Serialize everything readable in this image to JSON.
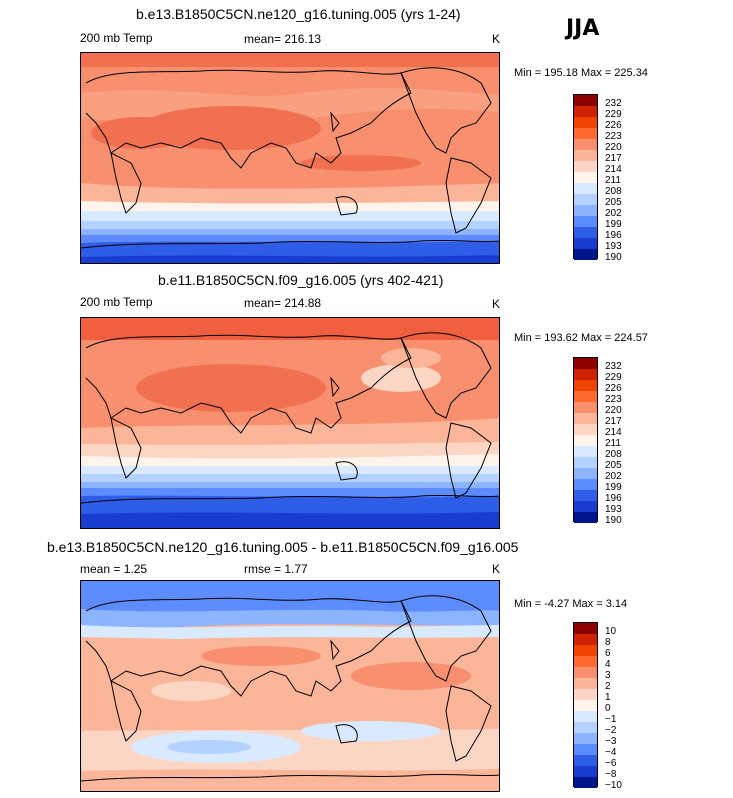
{
  "season": "JJA",
  "chart_data": [
    {
      "type": "heatmap",
      "title": "b.e13.B1850C5CN.ne120_g16.tuning.005 (yrs 1-24)",
      "variable": "200 mb Temp",
      "mean_label": "mean= 216.13",
      "units": "K",
      "min": 195.18,
      "max": 225.34,
      "minmax_label": "Min = 195.18 Max = 225.34",
      "contour_levels": [
        "232",
        "229",
        "226",
        "223",
        "220",
        "217",
        "214",
        "211",
        "208",
        "205",
        "202",
        "199",
        "196",
        "193",
        "190"
      ],
      "colors": [
        "#8b0000",
        "#cc2200",
        "#ee4400",
        "#ff6a30",
        "#f89070",
        "#fbb599",
        "#fcd6c4",
        "#fff4ec",
        "#d9eaff",
        "#b4d2ff",
        "#8cb4ff",
        "#5c8cff",
        "#2e5ee8",
        "#1a3cd0",
        "#00148c"
      ]
    },
    {
      "type": "heatmap",
      "title": "b.e11.B1850C5CN.f09_g16.005 (yrs 402-421)",
      "variable": "200 mb Temp",
      "mean_label": "mean= 214.88",
      "units": "K",
      "min": 193.62,
      "max": 224.57,
      "minmax_label": "Min = 193.62 Max = 224.57",
      "contour_levels": [
        "232",
        "229",
        "226",
        "223",
        "220",
        "217",
        "214",
        "211",
        "208",
        "205",
        "202",
        "199",
        "196",
        "193",
        "190"
      ],
      "colors": [
        "#8b0000",
        "#cc2200",
        "#ee4400",
        "#ff6a30",
        "#f89070",
        "#fbb599",
        "#fcd6c4",
        "#fff4ec",
        "#d9eaff",
        "#b4d2ff",
        "#8cb4ff",
        "#5c8cff",
        "#2e5ee8",
        "#1a3cd0",
        "#00148c"
      ]
    },
    {
      "type": "heatmap",
      "title": "b.e13.B1850C5CN.ne120_g16.tuning.005 - b.e11.B1850C5CN.f09_g16.005",
      "mean_label": "mean = 1.25",
      "rmse_label": "rmse = 1.77",
      "units": "K",
      "min": -4.27,
      "max": 3.14,
      "minmax_label": "Min = -4.27 Max = 3.14",
      "contour_levels": [
        "10",
        "8",
        "6",
        "4",
        "3",
        "2",
        "1",
        "0",
        "−1",
        "−2",
        "−3",
        "−4",
        "−6",
        "−8",
        "−10"
      ],
      "colors": [
        "#8b0000",
        "#cc2200",
        "#ee4400",
        "#ff6a30",
        "#f89070",
        "#fbb599",
        "#fcd6c4",
        "#fff4ec",
        "#d9eaff",
        "#b4d2ff",
        "#8cb4ff",
        "#5c8cff",
        "#2e5ee8",
        "#1a3cd0",
        "#00148c"
      ]
    }
  ]
}
